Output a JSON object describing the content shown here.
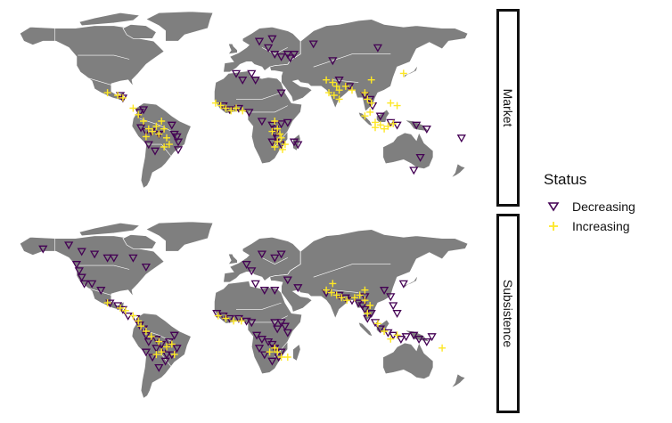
{
  "legend": {
    "title": "Status",
    "items": [
      {
        "label": "Decreasing",
        "symbol": "down-triangle",
        "color": "#440154"
      },
      {
        "label": "Increasing",
        "symbol": "plus",
        "color": "#FDE725"
      }
    ]
  },
  "panels": [
    {
      "label": "Market"
    },
    {
      "label": "Subsistence"
    }
  ],
  "colors": {
    "land": "#7f7f7f",
    "decreasing": "#440154",
    "increasing": "#FDE725",
    "strip_border": "#111111"
  },
  "chart_data": {
    "type": "scatter",
    "facets": [
      "Market",
      "Subsistence"
    ],
    "x": "longitude",
    "y": "latitude",
    "xlim": [
      -180,
      180
    ],
    "ylim": [
      -60,
      85
    ],
    "series": [
      {
        "name": "Decreasing",
        "facet": "Market",
        "points": [
          [
            -90,
            18
          ],
          [
            -88,
            16
          ],
          [
            -75,
            5
          ],
          [
            -72,
            7
          ],
          [
            -74,
            -7
          ],
          [
            -70,
            -10
          ],
          [
            -66,
            -10
          ],
          [
            -60,
            -12
          ],
          [
            -50,
            -5
          ],
          [
            -48,
            -12
          ],
          [
            -46,
            -14
          ],
          [
            -45,
            -18
          ],
          [
            -45,
            -24
          ],
          [
            -68,
            -20
          ],
          [
            -63,
            -25
          ],
          [
            -10,
            10
          ],
          [
            -5,
            7
          ],
          [
            2,
            8
          ],
          [
            10,
            5
          ],
          [
            20,
            -2
          ],
          [
            28,
            -5
          ],
          [
            30,
            -8
          ],
          [
            35,
            -4
          ],
          [
            40,
            -3
          ],
          [
            32,
            -15
          ],
          [
            30,
            -12
          ],
          [
            28,
            -18
          ],
          [
            35,
            -20
          ],
          [
            45,
            -18
          ],
          [
            48,
            -20
          ],
          [
            28,
            62
          ],
          [
            18,
            60
          ],
          [
            25,
            55
          ],
          [
            30,
            50
          ],
          [
            40,
            50
          ],
          [
            35,
            48
          ],
          [
            42,
            47
          ],
          [
            45,
            50
          ],
          [
            60,
            58
          ],
          [
            75,
            45
          ],
          [
            110,
            55
          ],
          [
            0,
            35
          ],
          [
            5,
            30
          ],
          [
            15,
            30
          ],
          [
            35,
            20
          ],
          [
            12,
            35
          ],
          [
            80,
            30
          ],
          [
            88,
            25
          ],
          [
            100,
            18
          ],
          [
            104,
            15
          ],
          [
            106,
            10
          ],
          [
            112,
            2
          ],
          [
            120,
            -3
          ],
          [
            125,
            -5
          ],
          [
            140,
            -5
          ],
          [
            148,
            -8
          ],
          [
            143,
            -30
          ],
          [
            138,
            -40
          ],
          [
            175,
            -15
          ]
        ]
      },
      {
        "name": "Increasing",
        "facet": "Market",
        "points": [
          [
            -100,
            20
          ],
          [
            -92,
            18
          ],
          [
            -88,
            16
          ],
          [
            -80,
            8
          ],
          [
            -76,
            3
          ],
          [
            -72,
            -2
          ],
          [
            -68,
            -8
          ],
          [
            -65,
            -10
          ],
          [
            -60,
            -12
          ],
          [
            -56,
            -8
          ],
          [
            -54,
            -15
          ],
          [
            -52,
            -20
          ],
          [
            -56,
            -22
          ],
          [
            -62,
            -6
          ],
          [
            -70,
            -14
          ],
          [
            -58,
            -2
          ],
          [
            -16,
            12
          ],
          [
            -12,
            10
          ],
          [
            -8,
            8
          ],
          [
            -4,
            6
          ],
          [
            0,
            8
          ],
          [
            5,
            6
          ],
          [
            30,
            -2
          ],
          [
            32,
            -8
          ],
          [
            28,
            -10
          ],
          [
            34,
            -12
          ],
          [
            35,
            -15
          ],
          [
            32,
            -18
          ],
          [
            38,
            -20
          ],
          [
            36,
            -24
          ],
          [
            30,
            -22
          ],
          [
            70,
            30
          ],
          [
            75,
            28
          ],
          [
            78,
            25
          ],
          [
            80,
            22
          ],
          [
            72,
            20
          ],
          [
            76,
            18
          ],
          [
            85,
            25
          ],
          [
            90,
            22
          ],
          [
            80,
            15
          ],
          [
            100,
            20
          ],
          [
            102,
            15
          ],
          [
            105,
            12
          ],
          [
            104,
            5
          ],
          [
            100,
            2
          ],
          [
            108,
            -3
          ],
          [
            112,
            -5
          ],
          [
            118,
            -6
          ],
          [
            122,
            -4
          ],
          [
            115,
            -8
          ],
          [
            108,
            -7
          ],
          [
            120,
            12
          ],
          [
            125,
            10
          ],
          [
            130,
            35
          ],
          [
            105,
            30
          ]
        ]
      },
      {
        "name": "Decreasing",
        "facet": "Subsistence",
        "points": [
          [
            -150,
            62
          ],
          [
            -130,
            65
          ],
          [
            -120,
            60
          ],
          [
            -110,
            58
          ],
          [
            -100,
            55
          ],
          [
            -124,
            50
          ],
          [
            -122,
            45
          ],
          [
            -120,
            40
          ],
          [
            -118,
            35
          ],
          [
            -112,
            35
          ],
          [
            -105,
            30
          ],
          [
            -95,
            55
          ],
          [
            -80,
            55
          ],
          [
            -70,
            48
          ],
          [
            -98,
            20
          ],
          [
            -92,
            18
          ],
          [
            -88,
            15
          ],
          [
            -84,
            10
          ],
          [
            -78,
            8
          ],
          [
            -75,
            3
          ],
          [
            -72,
            0
          ],
          [
            -70,
            -5
          ],
          [
            -68,
            -10
          ],
          [
            -62,
            -8
          ],
          [
            -58,
            -12
          ],
          [
            -56,
            -16
          ],
          [
            -52,
            -10
          ],
          [
            -48,
            -5
          ],
          [
            -46,
            -15
          ],
          [
            -50,
            -20
          ],
          [
            -55,
            -25
          ],
          [
            -60,
            -30
          ],
          [
            -65,
            -22
          ],
          [
            -70,
            -18
          ],
          [
            -62,
            -15
          ],
          [
            -54,
            -20
          ],
          [
            -15,
            12
          ],
          [
            -10,
            10
          ],
          [
            -5,
            8
          ],
          [
            2,
            8
          ],
          [
            8,
            6
          ],
          [
            12,
            5
          ],
          [
            16,
            -5
          ],
          [
            20,
            -8
          ],
          [
            25,
            -10
          ],
          [
            28,
            -12
          ],
          [
            30,
            -15
          ],
          [
            35,
            -18
          ],
          [
            33,
            -22
          ],
          [
            28,
            -25
          ],
          [
            22,
            -20
          ],
          [
            18,
            -15
          ],
          [
            30,
            5
          ],
          [
            35,
            5
          ],
          [
            38,
            2
          ],
          [
            40,
            -3
          ],
          [
            32,
            0
          ],
          [
            22,
            30
          ],
          [
            15,
            35
          ],
          [
            30,
            30
          ],
          [
            40,
            38
          ],
          [
            48,
            32
          ],
          [
            35,
            58
          ],
          [
            20,
            58
          ],
          [
            30,
            55
          ],
          [
            8,
            50
          ],
          [
            12,
            45
          ],
          [
            70,
            28
          ],
          [
            80,
            26
          ],
          [
            85,
            24
          ],
          [
            90,
            22
          ],
          [
            95,
            20
          ],
          [
            98,
            18
          ],
          [
            100,
            15
          ],
          [
            105,
            12
          ],
          [
            102,
            8
          ],
          [
            108,
            5
          ],
          [
            112,
            0
          ],
          [
            118,
            -3
          ],
          [
            122,
            -5
          ],
          [
            128,
            -8
          ],
          [
            132,
            -6
          ],
          [
            138,
            -5
          ],
          [
            142,
            -8
          ],
          [
            148,
            -10
          ],
          [
            152,
            -6
          ],
          [
            125,
            12
          ],
          [
            122,
            18
          ],
          [
            120,
            25
          ],
          [
            115,
            30
          ],
          [
            130,
            35
          ],
          [
            100,
            25
          ]
        ]
      },
      {
        "name": "Increasing",
        "facet": "Subsistence",
        "points": [
          [
            -100,
            20
          ],
          [
            -90,
            16
          ],
          [
            -86,
            14
          ],
          [
            -80,
            10
          ],
          [
            -76,
            6
          ],
          [
            -74,
            2
          ],
          [
            -70,
            -2
          ],
          [
            -66,
            -6
          ],
          [
            -60,
            -10
          ],
          [
            -58,
            -18
          ],
          [
            -54,
            -14
          ],
          [
            -50,
            -12
          ],
          [
            -48,
            -20
          ],
          [
            -62,
            -20
          ],
          [
            -14,
            10
          ],
          [
            -8,
            8
          ],
          [
            -2,
            6
          ],
          [
            4,
            6
          ],
          [
            30,
            -15
          ],
          [
            32,
            -18
          ],
          [
            35,
            -22
          ],
          [
            40,
            -22
          ],
          [
            26,
            -18
          ],
          [
            70,
            30
          ],
          [
            74,
            28
          ],
          [
            78,
            26
          ],
          [
            82,
            24
          ],
          [
            86,
            22
          ],
          [
            92,
            24
          ],
          [
            96,
            26
          ],
          [
            100,
            22
          ],
          [
            104,
            18
          ],
          [
            102,
            12
          ],
          [
            110,
            4
          ],
          [
            115,
            -2
          ],
          [
            120,
            -8
          ],
          [
            125,
            -5
          ],
          [
            75,
            35
          ],
          [
            100,
            30
          ],
          [
            160,
            -15
          ]
        ]
      }
    ]
  }
}
